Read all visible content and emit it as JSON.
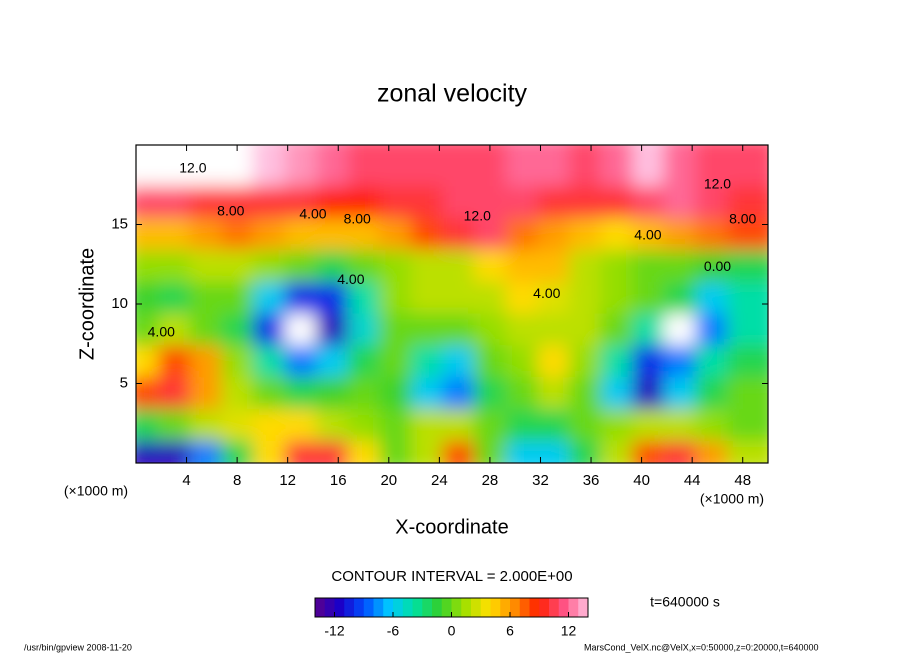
{
  "chart_data": {
    "type": "contour",
    "title": "zonal velocity",
    "x_label": "X-coordinate",
    "y_label": "Z-coordinate",
    "x_unit": "(×1000 m)",
    "y_unit": "(×1000 m)",
    "xlim": [
      0,
      50
    ],
    "ylim": [
      0,
      20
    ],
    "xticks": [
      4,
      8,
      12,
      16,
      20,
      24,
      28,
      32,
      36,
      40,
      44,
      48
    ],
    "yticks": [
      5,
      10,
      15
    ],
    "x": [
      1.25,
      3.75,
      6.25,
      8.75,
      11.25,
      13.75,
      16.25,
      18.75,
      21.25,
      23.75,
      26.25,
      28.75,
      31.25,
      33.75,
      36.25,
      38.75,
      41.25,
      43.75,
      46.25,
      48.75
    ],
    "y": [
      1,
      3,
      5,
      7,
      9,
      11,
      13,
      15,
      17,
      19
    ],
    "z": [
      [
        -12,
        -12,
        -8,
        -2,
        4,
        10,
        10,
        4,
        0,
        2,
        8,
        0,
        -6,
        -6,
        -2,
        2,
        8,
        10,
        6,
        2
      ],
      [
        -2,
        0,
        2,
        3,
        4,
        4,
        2,
        1,
        0,
        2,
        2,
        0,
        -2,
        -2,
        0,
        1,
        2,
        2,
        1,
        0
      ],
      [
        8,
        10,
        6,
        2,
        0,
        -2,
        -1,
        0,
        -1,
        -6,
        -8,
        -2,
        0,
        2,
        0,
        -6,
        -12,
        -6,
        -2,
        0
      ],
      [
        4,
        8,
        6,
        1,
        -4,
        -8,
        -6,
        -2,
        0,
        -4,
        -6,
        0,
        1,
        4,
        1,
        -4,
        -10,
        -8,
        -4,
        -2
      ],
      [
        0,
        2,
        0,
        -2,
        -10,
        -15,
        -12,
        -5,
        0,
        0,
        0,
        1,
        2,
        2,
        2,
        0,
        -4,
        -15,
        -8,
        -4
      ],
      [
        -1,
        -2,
        0,
        0,
        -6,
        -10,
        -10,
        -4,
        1,
        2,
        2,
        2,
        4,
        3,
        2,
        1,
        0,
        -2,
        -6,
        -4
      ],
      [
        1,
        1,
        2,
        2,
        1,
        0,
        -2,
        0,
        1,
        2,
        2,
        4,
        5,
        5,
        2,
        1,
        0,
        0,
        -1,
        -2
      ],
      [
        5,
        5,
        6,
        7,
        6,
        5,
        5,
        5,
        6,
        8,
        10,
        11,
        7,
        6,
        5,
        4,
        5,
        6,
        7,
        8
      ],
      [
        11,
        11,
        10,
        10,
        10,
        10,
        9,
        9,
        10,
        10,
        11,
        11,
        11,
        10,
        10,
        10,
        11,
        12,
        11,
        10
      ],
      [
        15,
        15,
        15,
        15,
        14,
        13,
        12,
        11,
        11,
        11,
        11,
        11,
        12,
        12,
        11,
        12,
        14,
        12,
        11,
        11
      ]
    ],
    "clim": [
      -14,
      14
    ],
    "colormap": [
      "#5a008c",
      "#1a00c8",
      "#0050ff",
      "#00c8ff",
      "#00e0a0",
      "#30d030",
      "#a0e000",
      "#ffe000",
      "#ff9000",
      "#ff2000",
      "#ff5080",
      "#ffc0e0"
    ],
    "out_of_range_color": "#ffffff",
    "colorbar_ticks": [
      -12,
      -6,
      0,
      6,
      12
    ],
    "contour_labels": [
      {
        "value": 12,
        "label": "12.0",
        "x": 4.5,
        "y": 18.5
      },
      {
        "value": 8,
        "label": "8.00",
        "x": 7.5,
        "y": 15.8
      },
      {
        "value": 4,
        "label": "4.00",
        "x": 14,
        "y": 15.6
      },
      {
        "value": 8,
        "label": "8.00",
        "x": 17.5,
        "y": 15.3
      },
      {
        "value": 12,
        "label": "12.0",
        "x": 27,
        "y": 15.5
      },
      {
        "value": 12,
        "label": "12.0",
        "x": 46,
        "y": 17.5
      },
      {
        "value": 4,
        "label": "4.00",
        "x": 40.5,
        "y": 14.3
      },
      {
        "value": 8,
        "label": "8.00",
        "x": 48,
        "y": 15.3
      },
      {
        "value": 0,
        "label": "0.00",
        "x": 46,
        "y": 12.3
      },
      {
        "value": 4,
        "label": "4.00",
        "x": 32.5,
        "y": 10.6
      },
      {
        "value": 4,
        "label": "4.00",
        "x": 2,
        "y": 8.2
      },
      {
        "value": 4,
        "label": "4.00",
        "x": 17,
        "y": 11.5
      }
    ],
    "contour_interval": "CONTOUR INTERVAL = 2.000E+00",
    "time_label": "t=640000 s",
    "footer_left": "/usr/bin/gpview  2008-11-20",
    "footer_right": "MarsCond_VelX.nc@VelX,x=0:50000,z=0:20000,t=640000"
  }
}
